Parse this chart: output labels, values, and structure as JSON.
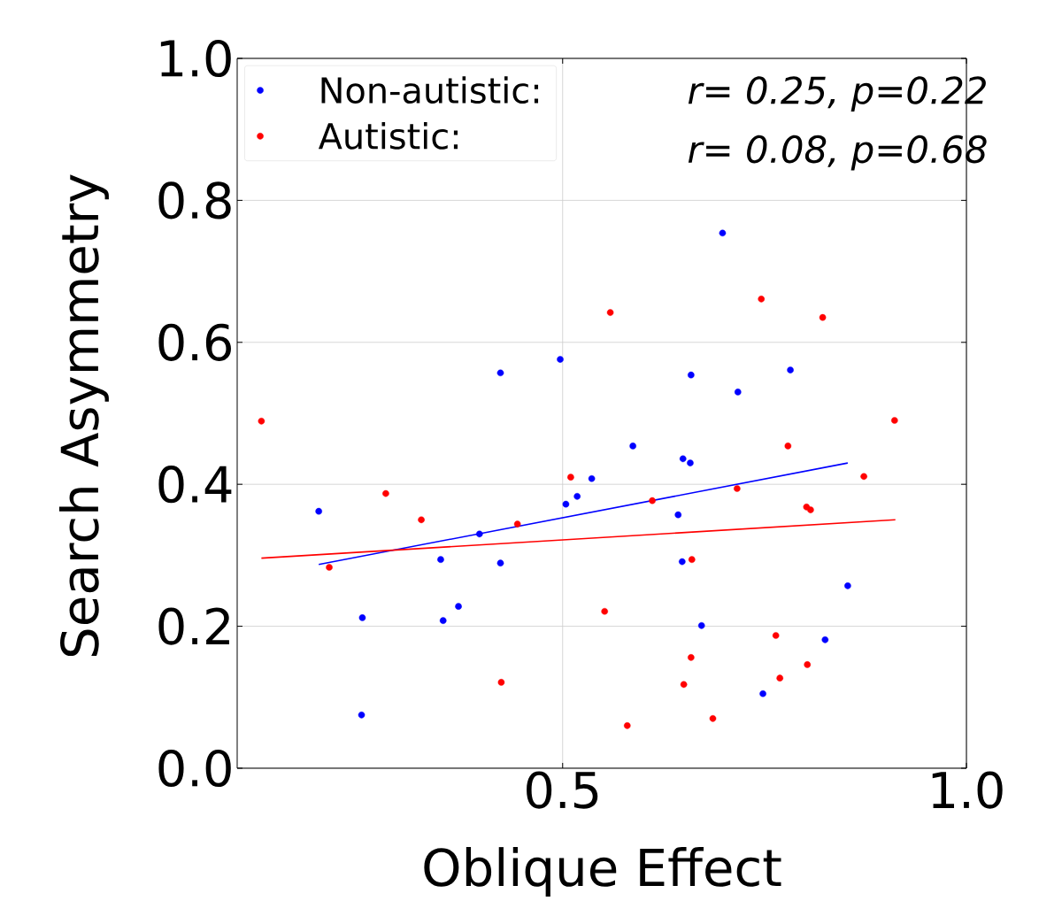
{
  "chart_data": {
    "type": "scatter",
    "xlabel": "Oblique Effect",
    "ylabel": "Search Asymmetry",
    "xlim": [
      0.097,
      1.0
    ],
    "ylim": [
      0.0,
      1.0
    ],
    "xticks": [
      0.5,
      {
        "value": 1.0,
        "label": "1.0"
      }
    ],
    "yticks": [
      {
        "value": 0.0,
        "label": "0.0"
      },
      0.2,
      0.4,
      0.6,
      0.8,
      {
        "value": 1.0,
        "label": "1.0"
      }
    ],
    "grid": true,
    "legend": "top left",
    "annotations": [
      "r= 0.25, p=0.22",
      "r= 0.08, p=0.68"
    ],
    "series": [
      {
        "name": "Non-autistic:",
        "color": "#0000ff",
        "marker": "circle",
        "x": [
          0.198,
          0.252,
          0.251,
          0.349,
          0.352,
          0.371,
          0.397,
          0.423,
          0.423,
          0.497,
          0.504,
          0.518,
          0.536,
          0.587,
          0.643,
          0.648,
          0.649,
          0.658,
          0.659,
          0.698,
          0.672,
          0.717,
          0.748,
          0.782,
          0.825,
          0.853
        ],
        "values": [
          0.362,
          0.212,
          0.075,
          0.294,
          0.208,
          0.228,
          0.33,
          0.289,
          0.557,
          0.576,
          0.372,
          0.383,
          0.408,
          0.454,
          0.357,
          0.291,
          0.436,
          0.43,
          0.554,
          0.754,
          0.201,
          0.53,
          0.105,
          0.561,
          0.181,
          0.257
        ]
      },
      {
        "name": "Autistic:",
        "color": "#ff0000",
        "marker": "circle",
        "x": [
          0.127,
          0.211,
          0.281,
          0.325,
          0.444,
          0.424,
          0.51,
          0.552,
          0.58,
          0.611,
          0.559,
          0.746,
          0.822,
          0.779,
          0.911,
          0.873,
          0.716,
          0.802,
          0.807,
          0.66,
          0.659,
          0.65,
          0.686,
          0.764,
          0.769,
          0.803
        ],
        "values": [
          0.489,
          0.283,
          0.387,
          0.35,
          0.344,
          0.121,
          0.41,
          0.221,
          0.06,
          0.377,
          0.642,
          0.661,
          0.635,
          0.454,
          0.49,
          0.411,
          0.394,
          0.368,
          0.364,
          0.294,
          0.156,
          0.118,
          0.07,
          0.187,
          0.127,
          0.146
        ]
      },
      {
        "color": "#0000ff",
        "type": "line",
        "marker": "none",
        "x": [
          0.198,
          0.853
        ],
        "values": [
          0.287,
          0.43
        ]
      },
      {
        "color": "#ff0000",
        "type": "line",
        "marker": "none",
        "x": [
          0.127,
          0.912
        ],
        "values": [
          0.296,
          0.35
        ]
      }
    ]
  }
}
